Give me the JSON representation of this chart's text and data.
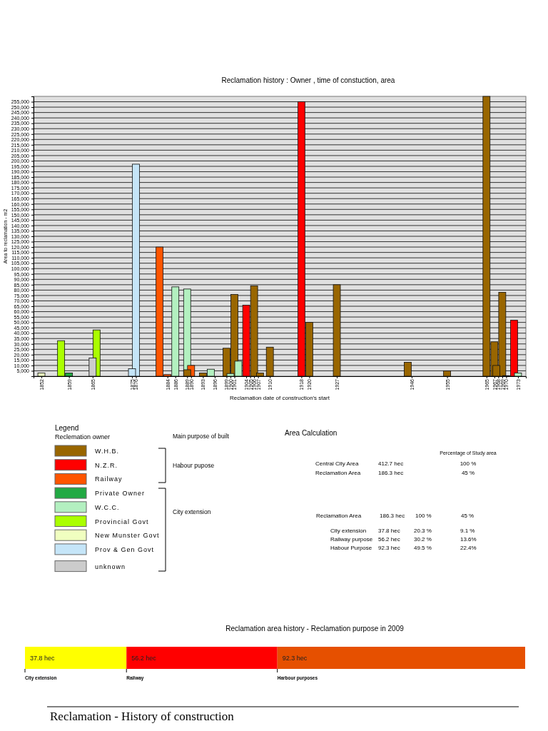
{
  "chart_data": [
    {
      "type": "bar",
      "title": "Reclamation  history : Owner , time of constuction, area",
      "xlabel": "Reclamation date of construction's start",
      "ylabel": "Area to reclamation - m2",
      "legend_title": "Reclemation owner",
      "legend": "bottom left",
      "grid": "y",
      "annotations": [
        "Legend",
        "Main purpose of built",
        "Habour pupose",
        "City extension"
      ],
      "xlim": [
        1850,
        1975
      ],
      "xticks": [
        1852,
        1859,
        1865,
        1875,
        1876,
        1884,
        1886,
        1889,
        1890,
        1893,
        1896,
        1899,
        1900,
        1901,
        1904,
        1905,
        1906,
        1907,
        1910,
        1918,
        1920,
        1927,
        1946,
        1955,
        1965,
        1967,
        1968,
        1969,
        1970,
        1973
      ],
      "ylim": [
        0,
        260000
      ],
      "yticks": [
        {
          "value": 5000,
          "label": "5,000"
        },
        {
          "value": 10000,
          "label": "10,000"
        },
        {
          "value": 15000,
          "label": "15,000"
        },
        {
          "value": 20000,
          "label": "20,000"
        },
        {
          "value": 25000,
          "label": "25,000"
        },
        {
          "value": 30000,
          "label": "30,000"
        },
        {
          "value": 35000,
          "label": "35,000"
        },
        {
          "value": 40000,
          "label": "40,000"
        },
        {
          "value": 45000,
          "label": "45,000"
        },
        {
          "value": 50000,
          "label": "50,000"
        },
        {
          "value": 55000,
          "label": "55,000"
        },
        {
          "value": 60000,
          "label": "60,000"
        },
        {
          "value": 65000,
          "label": "65,000"
        },
        {
          "value": 70000,
          "label": "70,000"
        },
        {
          "value": 75000,
          "label": "75,000"
        },
        {
          "value": 80000,
          "label": "80,000"
        },
        {
          "value": 85000,
          "label": "85,000"
        },
        {
          "value": 90000,
          "label": "90,000"
        },
        {
          "value": 95000,
          "label": "95,000"
        },
        {
          "value": 100000,
          "label": "100,000"
        },
        {
          "value": 105000,
          "label": "105,000"
        },
        {
          "value": 110000,
          "label": "110,000"
        },
        {
          "value": 115000,
          "label": "115,000"
        },
        {
          "value": 120000,
          "label": "120,000"
        },
        {
          "value": 125000,
          "label": "125,000"
        },
        {
          "value": 130000,
          "label": "130,000"
        },
        {
          "value": 135000,
          "label": "135,000"
        },
        {
          "value": 140000,
          "label": "140,000"
        },
        {
          "value": 145000,
          "label": "145,000"
        },
        {
          "value": 150000,
          "label": "150,000"
        },
        {
          "value": 155000,
          "label": "155,000"
        },
        {
          "value": 160000,
          "label": "160,000"
        },
        {
          "value": 165000,
          "label": "165,000"
        },
        {
          "value": 170000,
          "label": "170,000"
        },
        {
          "value": 175000,
          "label": "175,000"
        },
        {
          "value": 180000,
          "label": "180,000"
        },
        {
          "value": 185000,
          "label": "185,000"
        },
        {
          "value": 190000,
          "label": "190,000"
        },
        {
          "value": 195000,
          "label": "195,000"
        },
        {
          "value": 200000,
          "label": "200,000"
        },
        {
          "value": 205000,
          "label": "205,000"
        },
        {
          "value": 210000,
          "label": "210,000"
        },
        {
          "value": 215000,
          "label": "215,000"
        },
        {
          "value": 220000,
          "label": "220,000"
        },
        {
          "value": 225000,
          "label": "225,000"
        },
        {
          "value": 230000,
          "label": "230,000"
        },
        {
          "value": 235000,
          "label": "235,000"
        },
        {
          "value": 240000,
          "label": "240,000"
        },
        {
          "value": 245000,
          "label": "245,000"
        },
        {
          "value": 250000,
          "label": "250,000"
        },
        {
          "value": 255000,
          "label": "255,000"
        }
      ],
      "series": [
        {
          "name": "W.H.B.",
          "color": "#996600",
          "x": [
            1889,
            1893,
            1899,
            1901,
            1906,
            1907.5,
            1910,
            1920,
            1927,
            1945,
            1955,
            1965,
            1967,
            1967.5,
            1969,
            1970
          ],
          "values": [
            6000,
            3000,
            26000,
            76000,
            84000,
            3000,
            27000,
            50000,
            85000,
            13000,
            5000,
            260000,
            32000,
            10000,
            78000,
            500
          ]
        },
        {
          "name": "N.Z.R.",
          "color": "#ff0000",
          "x": [
            1904,
            1918,
            1972
          ],
          "values": [
            66000,
            255000,
            52000
          ]
        },
        {
          "name": "Railway",
          "color": "#ff5500",
          "x": [
            1882,
            1884,
            1890
          ],
          "values": [
            120000,
            1500,
            10000
          ]
        },
        {
          "name": "Private Owner",
          "color": "#22aa44",
          "x": [
            1859
          ],
          "values": [
            3000
          ]
        },
        {
          "name": "W.C.C.",
          "color": "#b3f0c0",
          "x": [
            1886,
            1889,
            1895,
            1900,
            1902,
            1973
          ],
          "values": [
            83000,
            81000,
            6500,
            2500,
            14000,
            3000
          ]
        },
        {
          "name": "Provincial Govt",
          "color": "#aaff00",
          "x": [
            1857,
            1866
          ],
          "values": [
            33000,
            43000
          ]
        },
        {
          "name": "New Munster Govt",
          "color": "#f0ffc0",
          "x": [
            1852
          ],
          "values": [
            3000
          ]
        },
        {
          "name": "Prov & Gen Govt",
          "color": "#c5e5f8",
          "x": [
            1875,
            1876
          ],
          "values": [
            7000,
            197000
          ]
        },
        {
          "name": "unknown",
          "color": "#cccccc",
          "x": [
            1865
          ],
          "values": [
            17000
          ]
        }
      ]
    },
    {
      "type": "other",
      "title": "Area Calculation",
      "annotations": [
        "Percentage of Study area",
        "Central City Area",
        "412.7 hec",
        "100 %",
        "Reclamation Area",
        "186.3 hec",
        "45 %",
        "Reclamation Area",
        "186.3 hec",
        "100 %",
        "45 %",
        "City extension",
        "37.8 hec",
        "20.3 %",
        "9.1 %",
        "Railway purpose",
        "56.2 hec",
        "30.2 %",
        "13.6%",
        "Habour Purpose",
        "92.3 hec",
        "49.5 %",
        "22.4%"
      ]
    },
    {
      "type": "bar",
      "orientation": "horizontal",
      "stacked": true,
      "title": "Reclamation area history - Reclamation purpose in 2009",
      "categories": [
        null
      ],
      "xlim": [
        0,
        186.3
      ],
      "tick_labels": false,
      "annotations": [
        "Reclamation - History of construction"
      ],
      "series": [
        {
          "name": "City extension",
          "color": "#ffff00",
          "values": [
            37.8
          ],
          "value_labels": [
            "37.8 hec"
          ]
        },
        {
          "name": "Railway",
          "color": "#ff0000",
          "values": [
            56.2
          ],
          "value_labels": [
            "56.2 hec"
          ]
        },
        {
          "name": "Harbour purposes",
          "color": "#e65000",
          "values": [
            92.3
          ],
          "value_labels": [
            "92.3 hec"
          ]
        }
      ]
    }
  ]
}
